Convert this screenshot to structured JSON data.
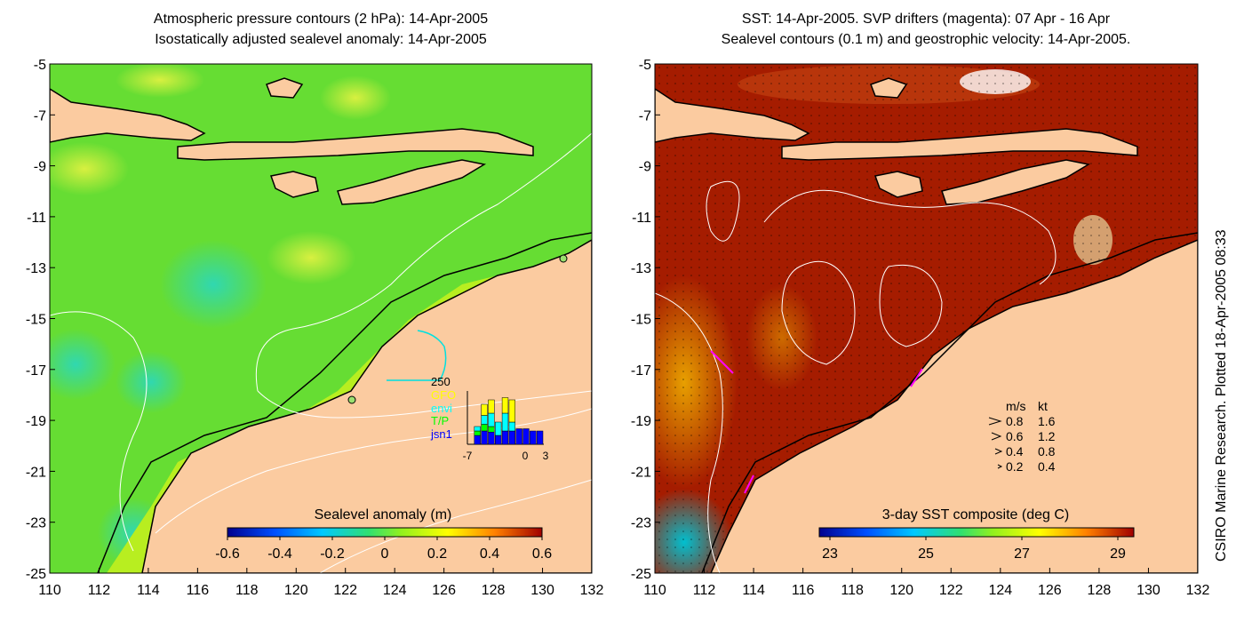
{
  "left_panel": {
    "title_line1": "Atmospheric pressure contours (2 hPa): 14-Apr-2005",
    "title_line2": "Isostatically adjusted sealevel anomaly: 14-Apr-2005",
    "colorbar": {
      "label": "Sealevel anomaly (m)",
      "ticks": [
        "-0.6",
        "-0.4",
        "-0.2",
        "0",
        "0.2",
        "0.4",
        "0.6"
      ]
    },
    "inset": {
      "ymax_label": "250",
      "legend": [
        {
          "label": "GFO",
          "color": "#ffff00"
        },
        {
          "label": "envi",
          "color": "#00ffff"
        },
        {
          "label": "T/P",
          "color": "#00ff00"
        },
        {
          "label": "jsn1",
          "color": "#0000ff"
        }
      ],
      "x_ticks": [
        "-7",
        "0",
        "3"
      ],
      "bars": [
        {
          "day": -7,
          "jsn1": 0,
          "tp": 0,
          "envi": 0,
          "gfo": 0
        },
        {
          "day": -6,
          "jsn1": 40,
          "tp": 20,
          "envi": 20,
          "gfo": 0
        },
        {
          "day": -5,
          "jsn1": 60,
          "tp": 30,
          "envi": 40,
          "gfo": 50
        },
        {
          "day": -4,
          "jsn1": 55,
          "tp": 25,
          "envi": 60,
          "gfo": 60
        },
        {
          "day": -3,
          "jsn1": 40,
          "tp": 0,
          "envi": 60,
          "gfo": 0
        },
        {
          "day": -2,
          "jsn1": 60,
          "tp": 0,
          "envi": 80,
          "gfo": 70
        },
        {
          "day": -1,
          "jsn1": 60,
          "tp": 0,
          "envi": 40,
          "gfo": 100
        },
        {
          "day": 0,
          "jsn1": 70,
          "tp": 0,
          "envi": 0,
          "gfo": 0
        },
        {
          "day": 1,
          "jsn1": 70,
          "tp": 0,
          "envi": 0,
          "gfo": 0
        },
        {
          "day": 2,
          "jsn1": 60,
          "tp": 0,
          "envi": 0,
          "gfo": 0
        },
        {
          "day": 3,
          "jsn1": 60,
          "tp": 0,
          "envi": 0,
          "gfo": 0
        }
      ]
    }
  },
  "right_panel": {
    "title_line1": "SST: 14-Apr-2005. SVP drifters (magenta): 07 Apr - 16 Apr",
    "title_line2": "Sealevel contours (0.1 m) and geostrophic velocity: 14-Apr-2005.",
    "colorbar": {
      "label": "3-day SST composite (deg C)",
      "ticks": [
        "23",
        "25",
        "27",
        "29"
      ]
    },
    "velocity_legend": {
      "header_ms": "m/s",
      "header_kt": "kt",
      "rows": [
        {
          "ms": "0.8",
          "kt": "1.6"
        },
        {
          "ms": "0.6",
          "kt": "1.2"
        },
        {
          "ms": "0.4",
          "kt": "0.8"
        },
        {
          "ms": "0.2",
          "kt": "0.4"
        }
      ]
    }
  },
  "axes": {
    "lon_ticks": [
      "110",
      "112",
      "114",
      "116",
      "118",
      "120",
      "122",
      "124",
      "126",
      "128",
      "130",
      "132"
    ],
    "lat_ticks": [
      "-5",
      "-7",
      "-9",
      "-11",
      "-13",
      "-15",
      "-17",
      "-19",
      "-21",
      "-23",
      "-25"
    ]
  },
  "credit": "CSIRO Marine Research. Plotted 18-Apr-2005 08:33",
  "colors": {
    "land": "#fbcba0",
    "sla_ocean": "#66dd33",
    "sst_ocean": "#a51c00"
  }
}
